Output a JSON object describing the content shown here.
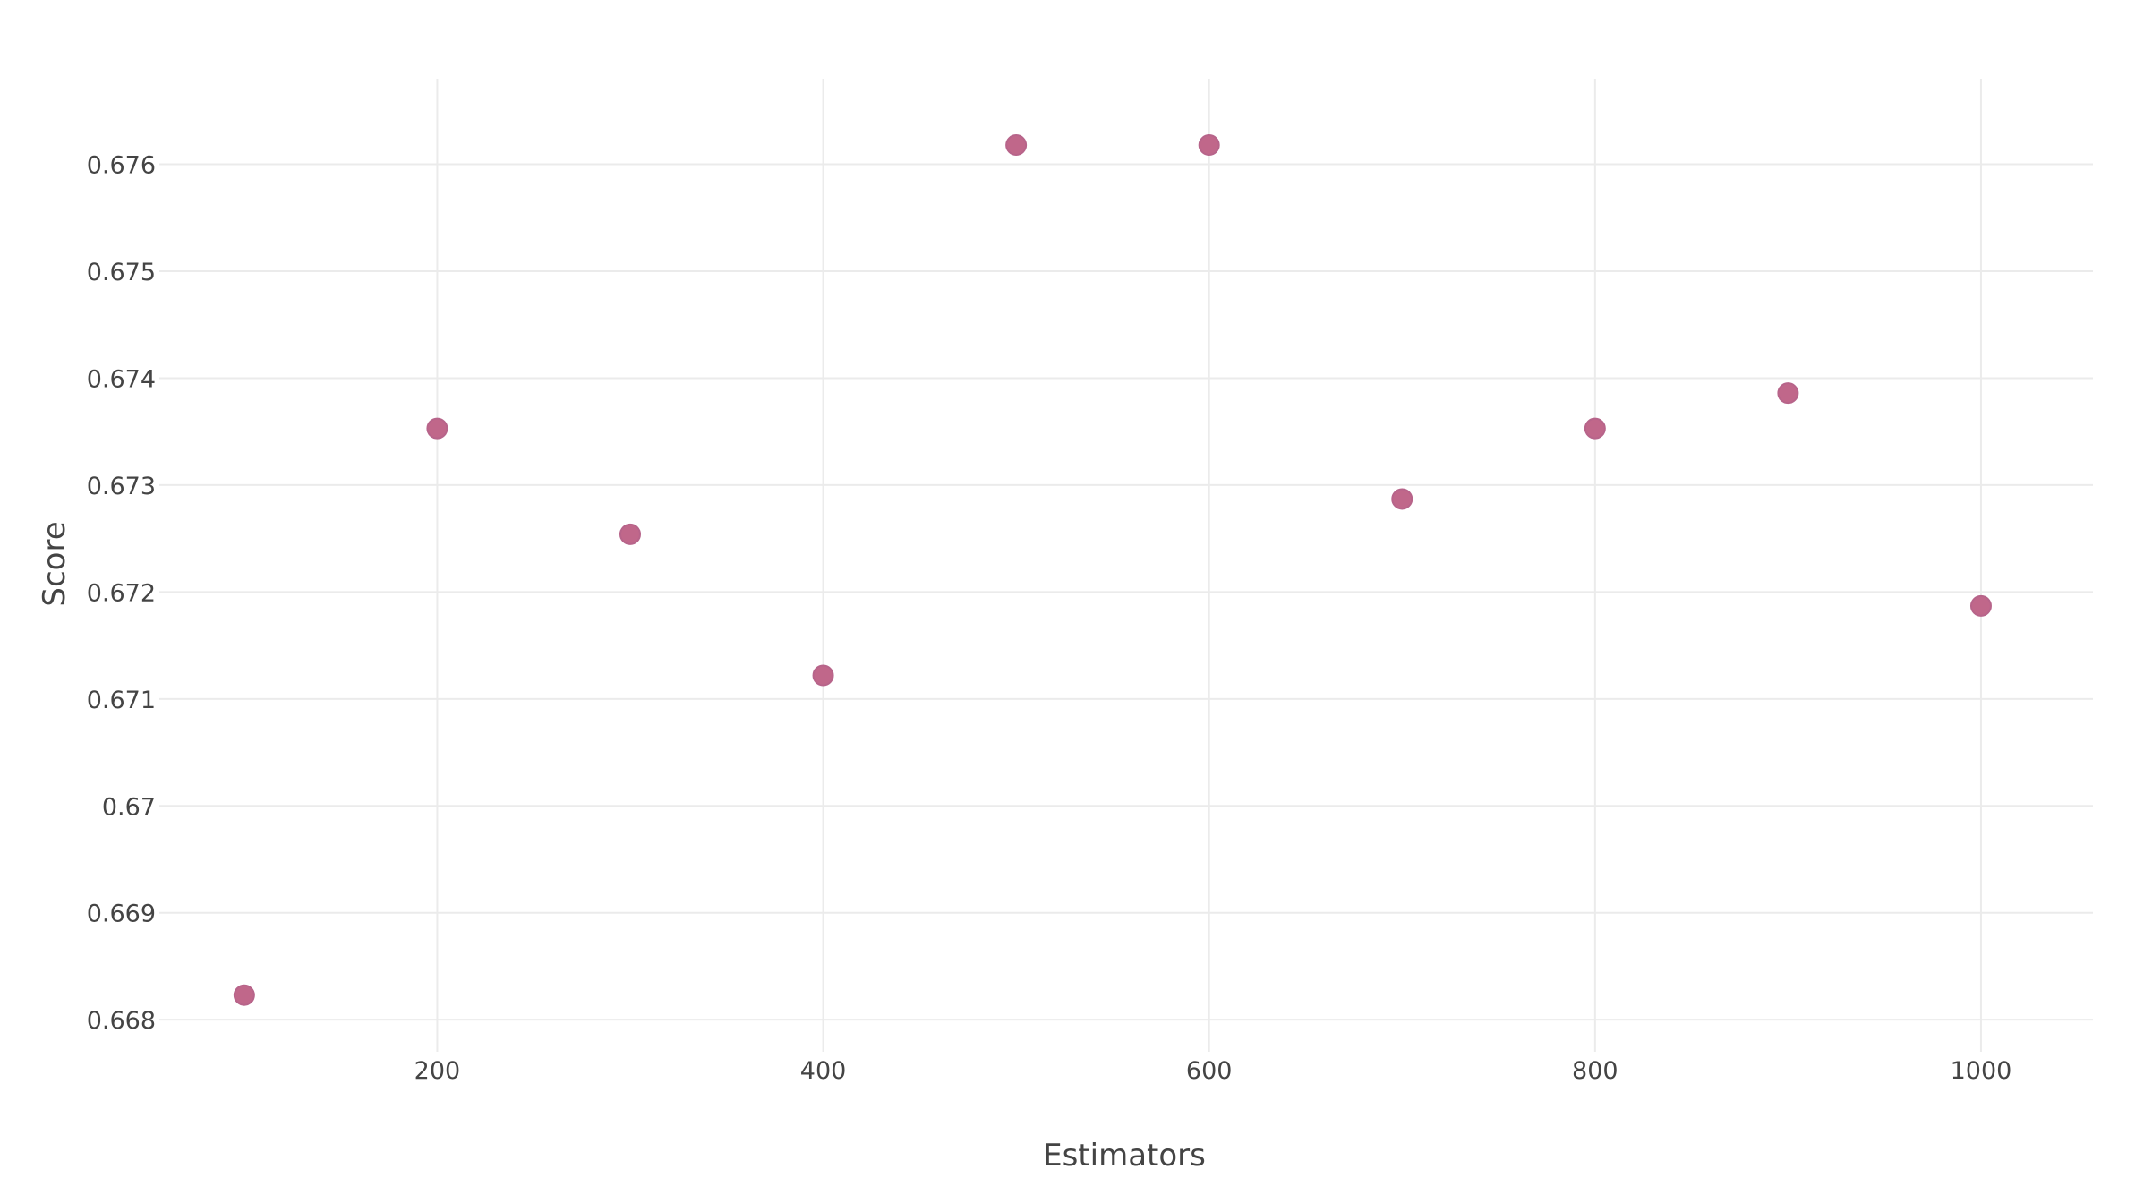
{
  "chart_data": {
    "type": "scatter",
    "xlabel": "Estimators",
    "ylabel": "Score",
    "xlim": [
      56,
      1058
    ],
    "ylim": [
      0.6677,
      0.6768
    ],
    "xticks": [
      200,
      400,
      600,
      800,
      1000
    ],
    "xtick_labels": [
      "200",
      "400",
      "600",
      "800",
      "1000"
    ],
    "yticks": [
      0.668,
      0.669,
      0.67,
      0.671,
      0.672,
      0.673,
      0.674,
      0.675,
      0.676
    ],
    "ytick_labels": [
      "0.668",
      "0.669",
      "0.67",
      "0.671",
      "0.672",
      "0.673",
      "0.674",
      "0.675",
      "0.676"
    ],
    "grid": true,
    "marker_color": "#c0678a",
    "marker_edge_color": "#b7648a",
    "series": [
      {
        "x": [
          100,
          200,
          300,
          400,
          500,
          600,
          700,
          800,
          900,
          1000
        ],
        "y": [
          0.66823,
          0.67353,
          0.67254,
          0.67122,
          0.67618,
          0.67618,
          0.67287,
          0.67353,
          0.67386,
          0.67187
        ]
      }
    ]
  }
}
